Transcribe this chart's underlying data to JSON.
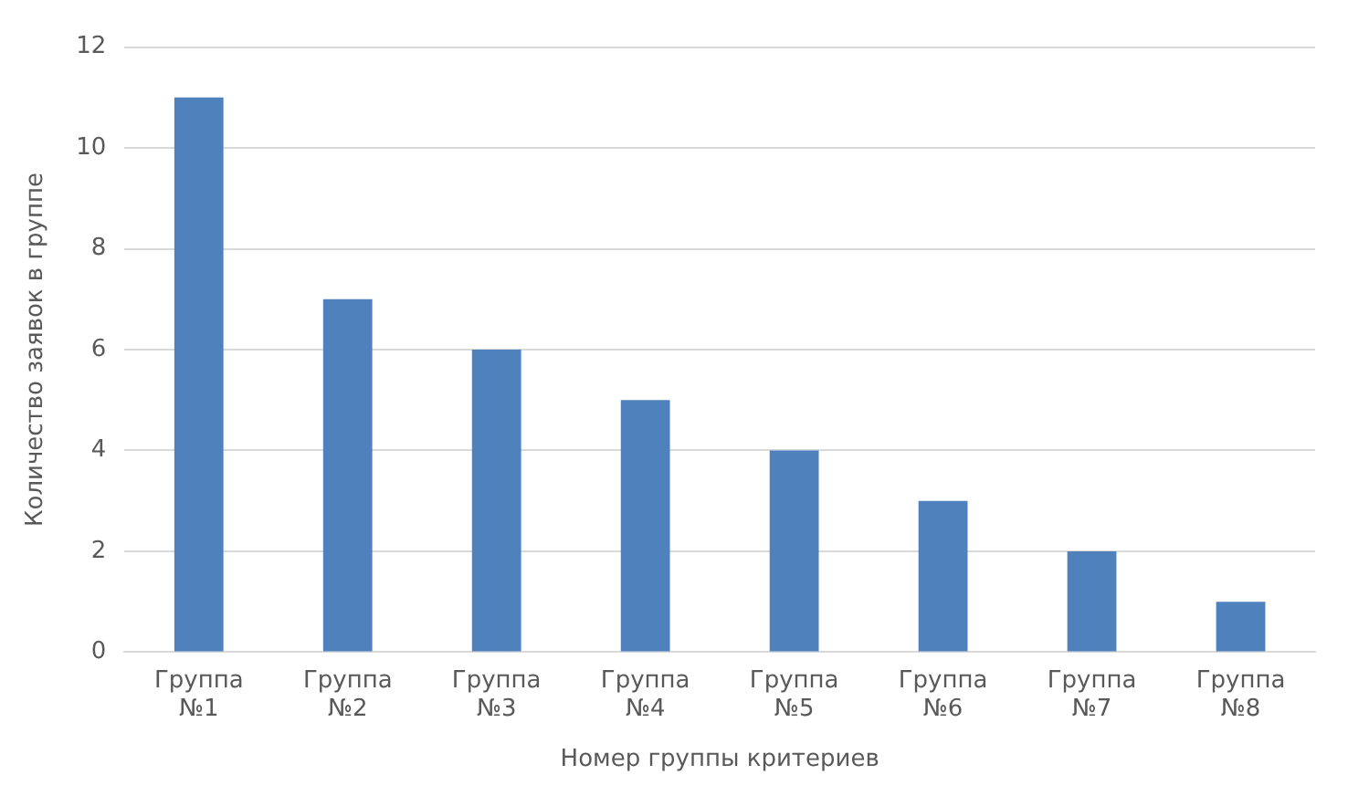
{
  "chart_data": {
    "type": "bar",
    "xlabel": "Номер группы критериев",
    "ylabel": "Количество заявок в группе",
    "categories": [
      "Группа №1",
      "Группа №2",
      "Группа №3",
      "Группа №4",
      "Группа №5",
      "Группа №6",
      "Группа №7",
      "Группа №8"
    ],
    "values": [
      11,
      7,
      6,
      5,
      4,
      3,
      2,
      1
    ],
    "color": "#4f81bd",
    "ylim": [
      0,
      12
    ],
    "yticks": [
      0,
      2,
      4,
      6,
      8,
      10,
      12
    ],
    "grid": "y",
    "legend": false
  }
}
